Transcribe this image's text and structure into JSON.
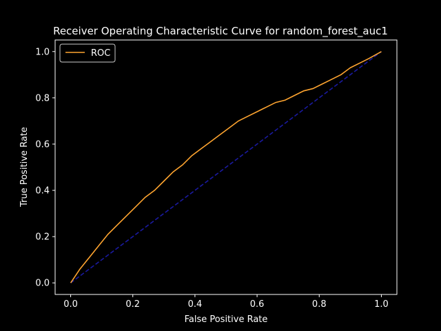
{
  "chart_data": {
    "type": "line",
    "title": "Receiver Operating Characteristic Curve for random_forest_auc1",
    "xlabel": "False Positive Rate",
    "ylabel": "True Positive Rate",
    "xlim": [
      -0.05,
      1.05
    ],
    "ylim": [
      -0.05,
      1.05
    ],
    "xticks": [
      "0.0",
      "0.2",
      "0.4",
      "0.6",
      "0.8",
      "1.0"
    ],
    "yticks": [
      "0.0",
      "0.2",
      "0.4",
      "0.6",
      "0.8",
      "1.0"
    ],
    "grid": false,
    "legend": {
      "placement": "top-left",
      "entries": [
        "ROC"
      ]
    },
    "series": [
      {
        "name": "ROC",
        "color": "#ffa530",
        "style": "solid",
        "x": [
          0.0,
          0.01,
          0.03,
          0.06,
          0.09,
          0.12,
          0.15,
          0.18,
          0.21,
          0.24,
          0.27,
          0.3,
          0.33,
          0.36,
          0.39,
          0.42,
          0.45,
          0.48,
          0.51,
          0.54,
          0.57,
          0.6,
          0.63,
          0.66,
          0.69,
          0.72,
          0.75,
          0.78,
          0.81,
          0.84,
          0.87,
          0.9,
          0.93,
          0.96,
          1.0
        ],
        "y": [
          0.0,
          0.02,
          0.06,
          0.11,
          0.16,
          0.21,
          0.25,
          0.29,
          0.33,
          0.37,
          0.4,
          0.44,
          0.48,
          0.51,
          0.55,
          0.58,
          0.61,
          0.64,
          0.67,
          0.7,
          0.72,
          0.74,
          0.76,
          0.78,
          0.79,
          0.81,
          0.83,
          0.84,
          0.86,
          0.88,
          0.9,
          0.93,
          0.95,
          0.97,
          1.0
        ]
      },
      {
        "name": "",
        "color": "#1a1aa0",
        "style": "dashed",
        "x": [
          0.0,
          1.0
        ],
        "y": [
          0.0,
          1.0
        ]
      }
    ]
  }
}
